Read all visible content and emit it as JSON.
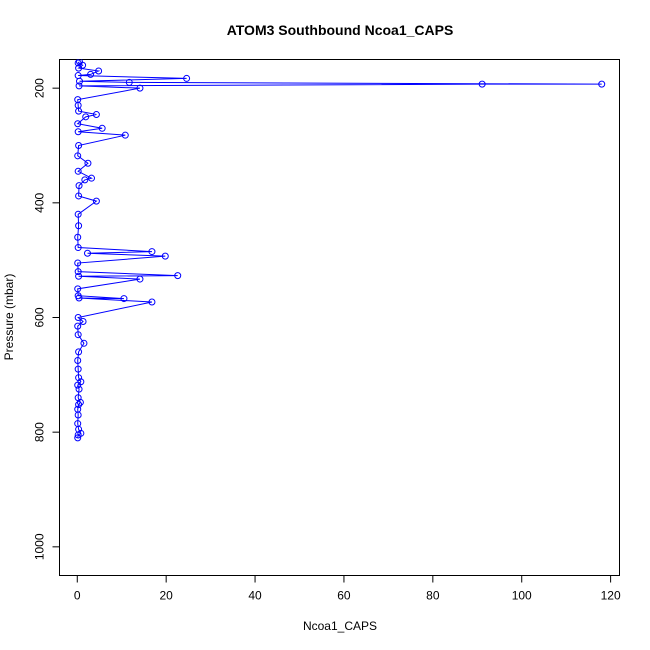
{
  "chart_data": {
    "type": "line",
    "title": "ATOM3 Southbound Ncoa1_CAPS",
    "xlabel": "Ncoa1_CAPS",
    "ylabel": "Pressure (mbar)",
    "xlim": [
      -4,
      122
    ],
    "ylim": [
      1050,
      150
    ],
    "x_ticks": [
      0,
      20,
      40,
      60,
      80,
      100,
      120
    ],
    "y_ticks": [
      200,
      400,
      600,
      800,
      1000
    ],
    "grid": false,
    "series_color": "#0000FF",
    "markers": "open-circle",
    "series": [
      {
        "points": [
          [
            0.1,
            810
          ],
          [
            0.2,
            805
          ],
          [
            0.8,
            802
          ],
          [
            0.3,
            795
          ],
          [
            0.1,
            785
          ],
          [
            0.2,
            770
          ],
          [
            0.1,
            760
          ],
          [
            0.3,
            752
          ],
          [
            0.7,
            748
          ],
          [
            0.2,
            740
          ],
          [
            0.4,
            725
          ],
          [
            0.1,
            718
          ],
          [
            0.8,
            712
          ],
          [
            0.3,
            705
          ],
          [
            0.2,
            690
          ],
          [
            0.1,
            675
          ],
          [
            0.3,
            660
          ],
          [
            1.5,
            645
          ],
          [
            0.2,
            630
          ],
          [
            0.1,
            615
          ],
          [
            1.3,
            607
          ],
          [
            0.2,
            600
          ],
          [
            16.8,
            573
          ],
          [
            0.4,
            566
          ],
          [
            10.5,
            567
          ],
          [
            0.2,
            562
          ],
          [
            0.1,
            550
          ],
          [
            14.1,
            533
          ],
          [
            0.3,
            528
          ],
          [
            22.6,
            527
          ],
          [
            0.2,
            520
          ],
          [
            0.1,
            505
          ],
          [
            19.8,
            493
          ],
          [
            2.3,
            488
          ],
          [
            16.8,
            485
          ],
          [
            0.2,
            478
          ],
          [
            0.1,
            460
          ],
          [
            0.3,
            440
          ],
          [
            0.2,
            420
          ],
          [
            4.3,
            397
          ],
          [
            0.3,
            388
          ],
          [
            0.4,
            370
          ],
          [
            1.7,
            360
          ],
          [
            3.2,
            357
          ],
          [
            0.2,
            345
          ],
          [
            2.4,
            331
          ],
          [
            0.1,
            318
          ],
          [
            0.3,
            300
          ],
          [
            10.8,
            282
          ],
          [
            0.2,
            276
          ],
          [
            5.6,
            270
          ],
          [
            0.1,
            262
          ],
          [
            1.9,
            250
          ],
          [
            4.3,
            246
          ],
          [
            0.3,
            240
          ],
          [
            0.2,
            230
          ],
          [
            0.1,
            220
          ],
          [
            14.1,
            200
          ],
          [
            0.4,
            196
          ],
          [
            91.1,
            193
          ],
          [
            118,
            193
          ],
          [
            11.7,
            190
          ],
          [
            0.5,
            188
          ],
          [
            24.6,
            183
          ],
          [
            0.2,
            178
          ],
          [
            3.0,
            176
          ],
          [
            4.8,
            170
          ],
          [
            0.3,
            165
          ],
          [
            1.2,
            160
          ],
          [
            0.2,
            156
          ],
          [
            0.5,
            154
          ]
        ]
      }
    ]
  }
}
